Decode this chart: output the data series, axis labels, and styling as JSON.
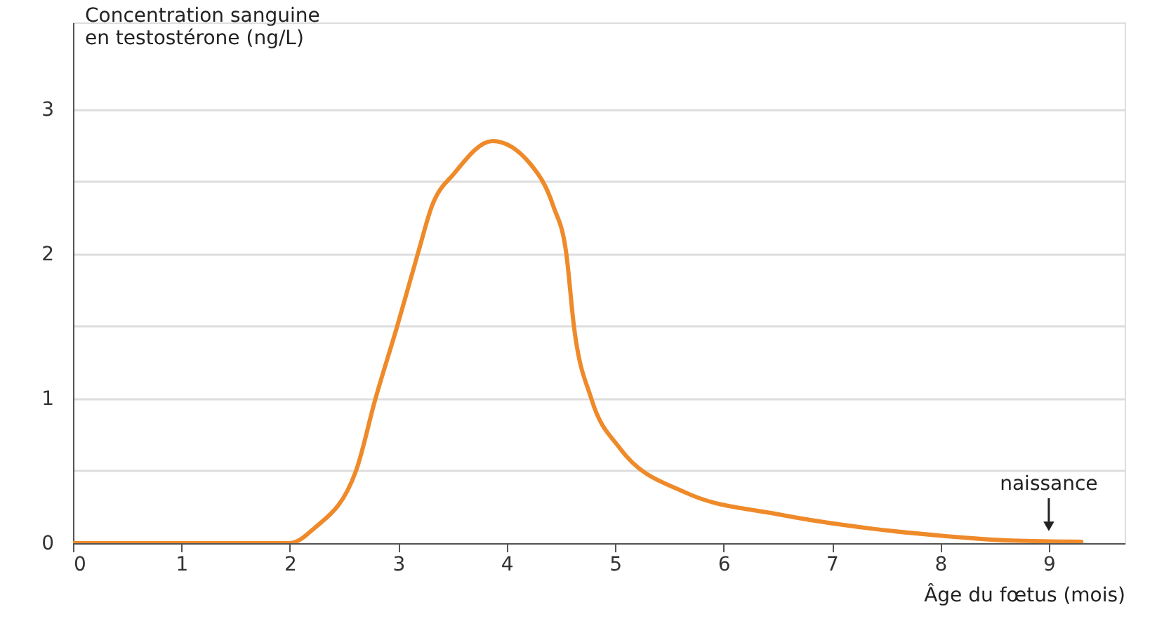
{
  "chart_data": {
    "type": "line",
    "ylabel": "Concentration sanguine en testostérone (ng/L)",
    "xlabel": "Âge du fœtus (mois)",
    "x": [
      0,
      1,
      2,
      2.22,
      2.61,
      2.79,
      2.99,
      3.18,
      3.31,
      3.52,
      3.87,
      4.22,
      4.43,
      4.55,
      4.62,
      4.78,
      5.04,
      5.65,
      6.5,
      7.37,
      8.03,
      8.6,
      9.3
    ],
    "series": [
      {
        "color": "#ef8a2a",
        "values": [
          0,
          0,
          0,
          0.1,
          0.5,
          1.0,
          1.5,
          2.0,
          2.33,
          2.56,
          2.78,
          2.62,
          2.33,
          2.0,
          1.5,
          1.0,
          0.66,
          0.35,
          0.2,
          0.1,
          0.05,
          0.02,
          0.01
        ]
      }
    ],
    "xlim": [
      0,
      9.7
    ],
    "ylim": [
      0,
      3.6
    ],
    "xticks": [
      0,
      1,
      2,
      3,
      4,
      5,
      6,
      7,
      8,
      9
    ],
    "yticks": [
      0,
      {
        "value": 0.5,
        "label": null
      },
      1,
      {
        "value": 1.5,
        "label": null
      },
      2,
      {
        "value": 2.5,
        "label": null
      },
      3
    ],
    "grid": "y",
    "marker": "none",
    "line_style": "solid",
    "annotations": [
      {
        "text": "naissance",
        "x": 9,
        "y": 0.01
      }
    ]
  }
}
